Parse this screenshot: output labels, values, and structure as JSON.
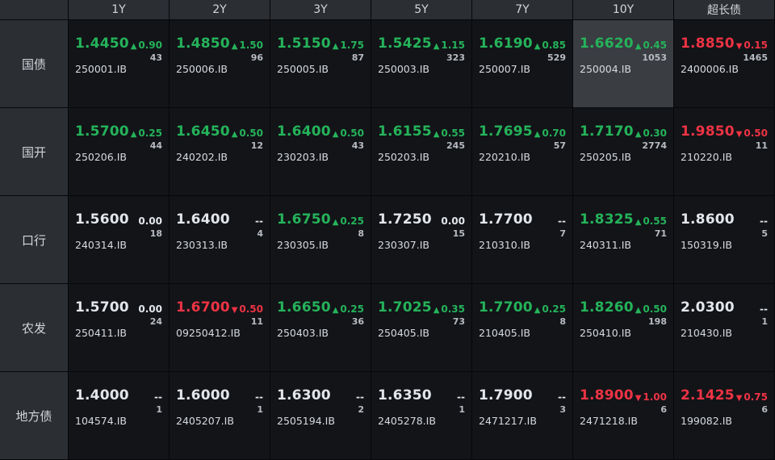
{
  "columns": [
    "1Y",
    "2Y",
    "3Y",
    "5Y",
    "7Y",
    "10Y",
    "超长债"
  ],
  "rows": [
    {
      "label": "国债",
      "cells": [
        {
          "yield": "1.4450",
          "dir": "up",
          "change": "0.90",
          "count": "43",
          "code": "250001.IB"
        },
        {
          "yield": "1.4850",
          "dir": "up",
          "change": "1.50",
          "count": "96",
          "code": "250006.IB"
        },
        {
          "yield": "1.5150",
          "dir": "up",
          "change": "1.75",
          "count": "87",
          "code": "250005.IB"
        },
        {
          "yield": "1.5425",
          "dir": "up",
          "change": "1.15",
          "count": "323",
          "code": "250003.IB"
        },
        {
          "yield": "1.6190",
          "dir": "up",
          "change": "0.85",
          "count": "529",
          "code": "250007.IB"
        },
        {
          "yield": "1.6620",
          "dir": "up",
          "change": "0.45",
          "count": "1053",
          "code": "250004.IB",
          "selected": true
        },
        {
          "yield": "1.8850",
          "dir": "down",
          "change": "0.15",
          "count": "1465",
          "code": "2400006.IB"
        }
      ]
    },
    {
      "label": "国开",
      "cells": [
        {
          "yield": "1.5700",
          "dir": "up",
          "change": "0.25",
          "count": "44",
          "code": "250206.IB"
        },
        {
          "yield": "1.6450",
          "dir": "up",
          "change": "0.50",
          "count": "12",
          "code": "240202.IB"
        },
        {
          "yield": "1.6400",
          "dir": "up",
          "change": "0.50",
          "count": "43",
          "code": "230203.IB"
        },
        {
          "yield": "1.6155",
          "dir": "up",
          "change": "0.55",
          "count": "245",
          "code": "250203.IB"
        },
        {
          "yield": "1.7695",
          "dir": "up",
          "change": "0.70",
          "count": "57",
          "code": "220210.IB"
        },
        {
          "yield": "1.7170",
          "dir": "up",
          "change": "0.30",
          "count": "2774",
          "code": "250205.IB"
        },
        {
          "yield": "1.9850",
          "dir": "down",
          "change": "0.50",
          "count": "11",
          "code": "210220.IB"
        }
      ]
    },
    {
      "label": "口行",
      "cells": [
        {
          "yield": "1.5600",
          "dir": "flat",
          "change": "0.00",
          "count": "18",
          "code": "240314.IB"
        },
        {
          "yield": "1.6400",
          "dir": "flat",
          "change": "--",
          "count": "4",
          "code": "230313.IB"
        },
        {
          "yield": "1.6750",
          "dir": "up",
          "change": "0.25",
          "count": "8",
          "code": "230305.IB"
        },
        {
          "yield": "1.7250",
          "dir": "flat",
          "change": "0.00",
          "count": "15",
          "code": "230307.IB"
        },
        {
          "yield": "1.7700",
          "dir": "flat",
          "change": "--",
          "count": "7",
          "code": "210310.IB"
        },
        {
          "yield": "1.8325",
          "dir": "up",
          "change": "0.55",
          "count": "71",
          "code": "240311.IB"
        },
        {
          "yield": "1.8600",
          "dir": "flat",
          "change": "--",
          "count": "5",
          "code": "150319.IB"
        }
      ]
    },
    {
      "label": "农发",
      "cells": [
        {
          "yield": "1.5700",
          "dir": "flat",
          "change": "0.00",
          "count": "24",
          "code": "250411.IB"
        },
        {
          "yield": "1.6700",
          "dir": "down",
          "change": "0.50",
          "count": "11",
          "code": "09250412.IB"
        },
        {
          "yield": "1.6650",
          "dir": "up",
          "change": "0.25",
          "count": "36",
          "code": "250403.IB"
        },
        {
          "yield": "1.7025",
          "dir": "up",
          "change": "0.35",
          "count": "73",
          "code": "250405.IB"
        },
        {
          "yield": "1.7700",
          "dir": "up",
          "change": "0.25",
          "count": "8",
          "code": "210405.IB"
        },
        {
          "yield": "1.8260",
          "dir": "up",
          "change": "0.50",
          "count": "198",
          "code": "250410.IB"
        },
        {
          "yield": "2.0300",
          "dir": "flat",
          "change": "--",
          "count": "1",
          "code": "210430.IB"
        }
      ]
    },
    {
      "label": "地方债",
      "cells": [
        {
          "yield": "1.4000",
          "dir": "flat",
          "change": "--",
          "count": "1",
          "code": "104574.IB"
        },
        {
          "yield": "1.6000",
          "dir": "flat",
          "change": "--",
          "count": "1",
          "code": "2405207.IB"
        },
        {
          "yield": "1.6300",
          "dir": "flat",
          "change": "--",
          "count": "2",
          "code": "2505194.IB"
        },
        {
          "yield": "1.6350",
          "dir": "flat",
          "change": "--",
          "count": "1",
          "code": "2405278.IB"
        },
        {
          "yield": "1.7900",
          "dir": "flat",
          "change": "--",
          "count": "3",
          "code": "2471217.IB"
        },
        {
          "yield": "1.8900",
          "dir": "down",
          "change": "1.00",
          "count": "6",
          "code": "2471218.IB"
        },
        {
          "yield": "2.1425",
          "dir": "down",
          "change": "0.75",
          "count": "6",
          "code": "199082.IB"
        }
      ]
    }
  ],
  "colors": {
    "up": "#25b35a",
    "down": "#ee3344",
    "flat": "#e3e6ea",
    "header_bg": "#2b2e33",
    "cell_bg": "#121418",
    "selected_bg": "#3a3d42"
  },
  "icons": {
    "up": "triangle-up-icon",
    "down": "triangle-down-icon"
  }
}
